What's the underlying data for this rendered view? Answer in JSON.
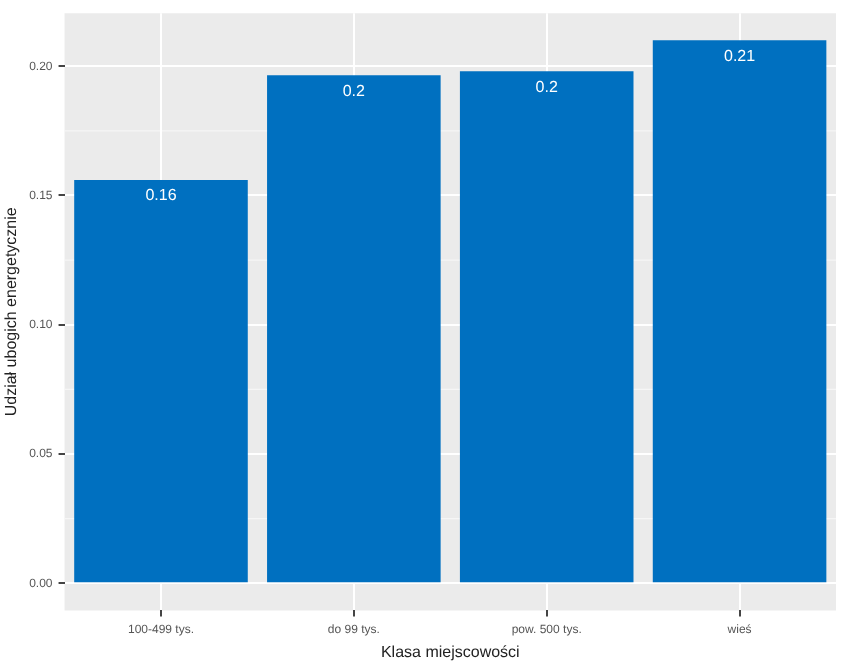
{
  "chart_data": {
    "type": "bar",
    "xlabel": "Klasa miejscowości",
    "ylabel": "Udział ubogich energetycznie",
    "categories": [
      "100-499 tys.",
      "do 99 tys.",
      "pow. 500 tys.",
      "wieś"
    ],
    "values": [
      0.156,
      0.1965,
      0.198,
      0.21
    ],
    "value_labels": [
      "0.16",
      "0.2",
      "0.2",
      "0.21"
    ],
    "color": "#0070c0",
    "ylim": [
      -0.0105,
      0.2205
    ],
    "yticks": [
      {
        "value": 0,
        "label": "0.00"
      },
      {
        "value": 0.05,
        "label": "0.05"
      },
      {
        "value": 0.1,
        "label": "0.10"
      },
      {
        "value": 0.15,
        "label": "0.15"
      },
      {
        "value": 0.2,
        "label": "0.20"
      }
    ],
    "grid": true
  }
}
